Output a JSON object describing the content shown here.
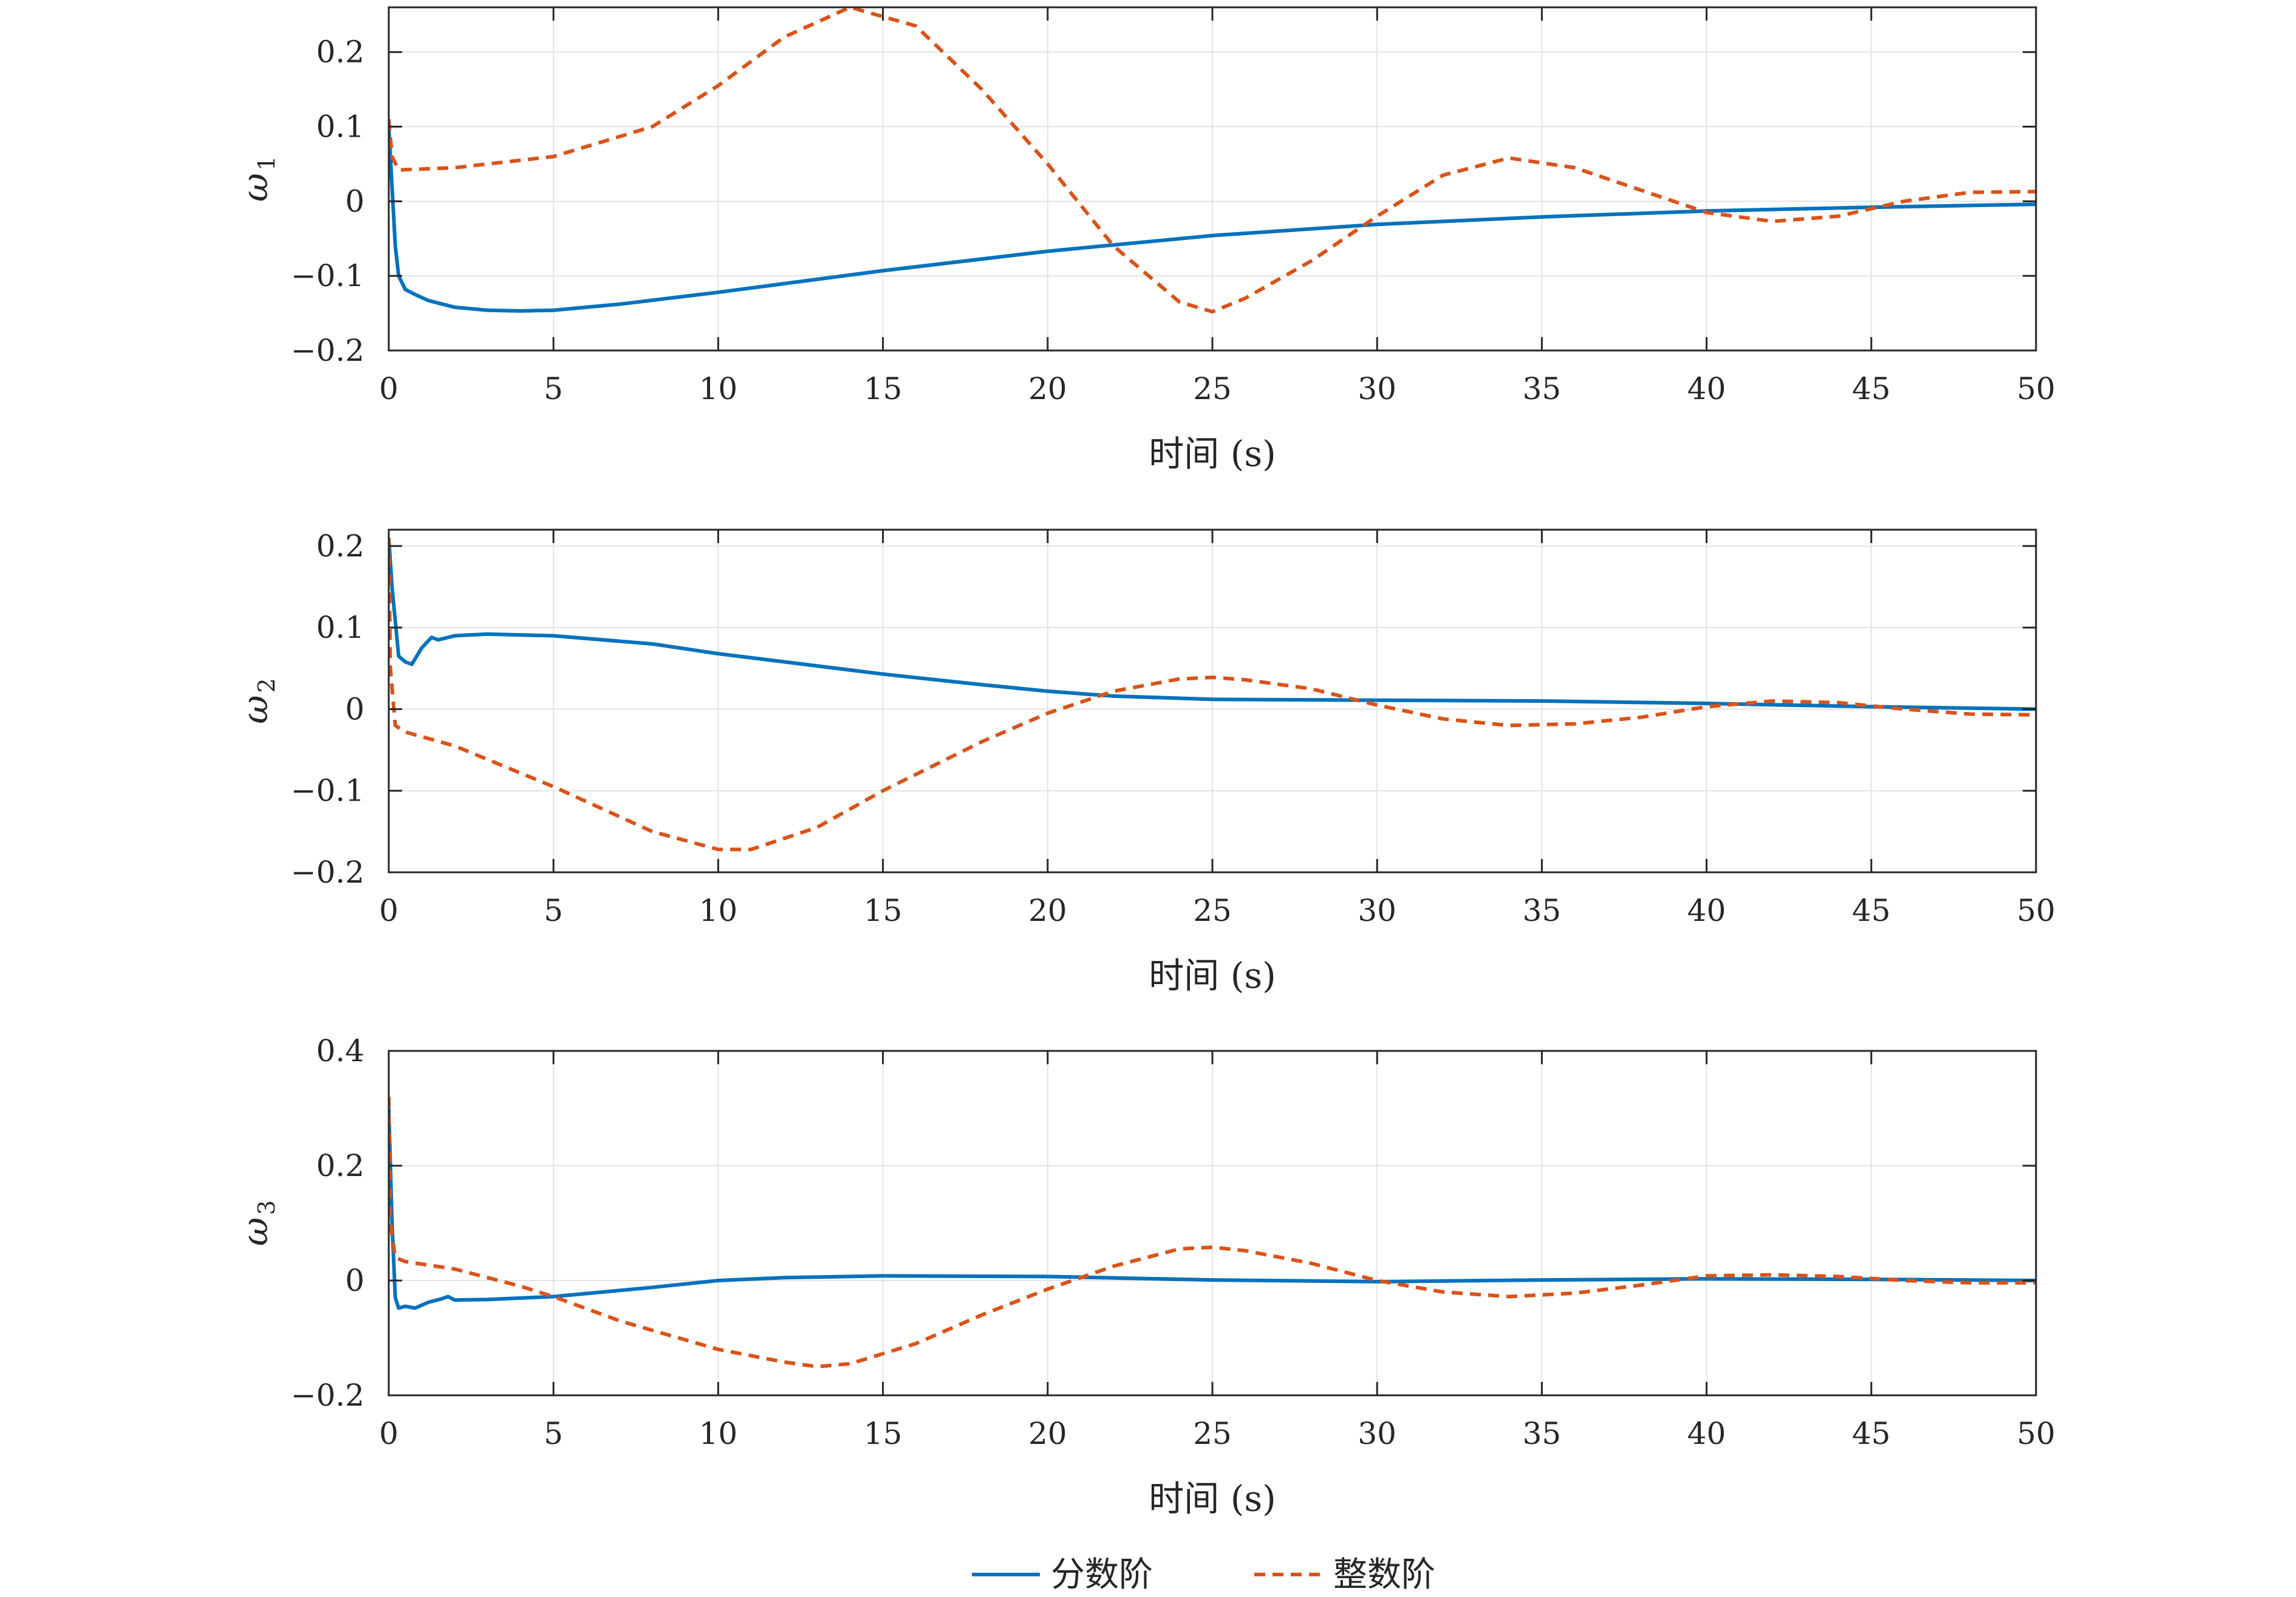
{
  "chart_data": [
    {
      "type": "line",
      "xlabel": "时间 (s)",
      "ylabel": "ω",
      "ylabel_sub": "1",
      "xlim": [
        0,
        50
      ],
      "ylim": [
        -0.2,
        0.26
      ],
      "xticks": [
        0,
        5,
        10,
        15,
        20,
        25,
        30,
        35,
        40,
        45,
        50
      ],
      "yticks": [
        -0.2,
        -0.1,
        0,
        0.1,
        0.2
      ],
      "ytick_labels": [
        "−0.2",
        "−0.1",
        "0",
        "0.1",
        "0.2"
      ],
      "grid": true,
      "series": [
        {
          "name": "分数阶",
          "style": "solid",
          "color": "#0072BD",
          "x": [
            0,
            0.1,
            0.2,
            0.3,
            0.5,
            0.8,
            1.2,
            2,
            3,
            4,
            5,
            7,
            10,
            15,
            20,
            25,
            30,
            35,
            40,
            45,
            50
          ],
          "y": [
            0.1,
            0.02,
            -0.06,
            -0.1,
            -0.118,
            -0.125,
            -0.133,
            -0.142,
            -0.146,
            -0.147,
            -0.146,
            -0.138,
            -0.122,
            -0.093,
            -0.067,
            -0.046,
            -0.031,
            -0.021,
            -0.013,
            -0.008,
            -0.004
          ]
        },
        {
          "name": "整数阶",
          "style": "dashed",
          "color": "#D95319",
          "x": [
            0,
            0.1,
            0.3,
            2,
            5,
            8,
            10,
            12,
            14,
            16,
            18,
            20,
            22,
            24,
            25,
            26,
            28,
            30,
            32,
            34,
            36,
            38,
            40,
            42,
            44,
            46,
            48,
            50
          ],
          "y": [
            0.11,
            0.06,
            0.042,
            0.045,
            0.06,
            0.1,
            0.155,
            0.22,
            0.26,
            0.235,
            0.15,
            0.05,
            -0.06,
            -0.135,
            -0.148,
            -0.13,
            -0.08,
            -0.02,
            0.035,
            0.058,
            0.045,
            0.015,
            -0.015,
            -0.027,
            -0.02,
            0,
            0.012,
            0.013
          ]
        }
      ]
    },
    {
      "type": "line",
      "xlabel": "时间 (s)",
      "ylabel": "ω",
      "ylabel_sub": "2",
      "xlim": [
        0,
        50
      ],
      "ylim": [
        -0.2,
        0.22
      ],
      "xticks": [
        0,
        5,
        10,
        15,
        20,
        25,
        30,
        35,
        40,
        45,
        50
      ],
      "yticks": [
        -0.2,
        -0.1,
        0,
        0.1,
        0.2
      ],
      "ytick_labels": [
        "−0.2",
        "−0.1",
        "0",
        "0.1",
        "0.2"
      ],
      "grid": true,
      "series": [
        {
          "name": "分数阶",
          "style": "solid",
          "color": "#0072BD",
          "x": [
            0,
            0.1,
            0.3,
            0.5,
            0.7,
            1.0,
            1.3,
            1.5,
            2,
            3,
            5,
            8,
            10,
            12,
            15,
            18,
            20,
            22,
            25,
            30,
            35,
            40,
            45,
            50
          ],
          "y": [
            0.21,
            0.15,
            0.065,
            0.058,
            0.055,
            0.075,
            0.088,
            0.085,
            0.09,
            0.092,
            0.09,
            0.08,
            0.068,
            0.058,
            0.043,
            0.03,
            0.022,
            0.016,
            0.012,
            0.011,
            0.01,
            0.007,
            0.003,
            0.0
          ]
        },
        {
          "name": "整数阶",
          "style": "dashed",
          "color": "#D95319",
          "x": [
            0,
            0.05,
            0.2,
            0.5,
            2,
            5,
            8,
            10,
            11,
            13,
            15,
            18,
            20,
            22,
            24,
            25,
            26,
            28,
            30,
            32,
            34,
            36,
            38,
            40,
            42,
            44,
            46,
            48,
            50
          ],
          "y": [
            0.21,
            0.05,
            -0.02,
            -0.028,
            -0.045,
            -0.095,
            -0.15,
            -0.172,
            -0.172,
            -0.145,
            -0.1,
            -0.04,
            -0.005,
            0.022,
            0.037,
            0.039,
            0.036,
            0.025,
            0.005,
            -0.012,
            -0.02,
            -0.018,
            -0.01,
            0.003,
            0.01,
            0.008,
            0.0,
            -0.006,
            -0.007
          ]
        }
      ]
    },
    {
      "type": "line",
      "xlabel": "时间 (s)",
      "ylabel": "ω",
      "ylabel_sub": "3",
      "xlim": [
        0,
        50
      ],
      "ylim": [
        -0.2,
        0.4
      ],
      "xticks": [
        0,
        5,
        10,
        15,
        20,
        25,
        30,
        35,
        40,
        45,
        50
      ],
      "yticks": [
        -0.2,
        0,
        0.2,
        0.4
      ],
      "ytick_labels": [
        "−0.2",
        "0",
        "0.2",
        "0.4"
      ],
      "grid": true,
      "series": [
        {
          "name": "分数阶",
          "style": "solid",
          "color": "#0072BD",
          "x": [
            0,
            0.1,
            0.2,
            0.3,
            0.5,
            0.8,
            1.2,
            1.6,
            1.8,
            2.0,
            3,
            5,
            8,
            10,
            12,
            15,
            20,
            25,
            30,
            35,
            40,
            45,
            50
          ],
          "y": [
            0.3,
            0.1,
            -0.03,
            -0.048,
            -0.045,
            -0.048,
            -0.038,
            -0.032,
            -0.028,
            -0.034,
            -0.033,
            -0.028,
            -0.012,
            0.0,
            0.005,
            0.008,
            0.007,
            0.001,
            -0.002,
            0.001,
            0.003,
            0.002,
            0.0
          ]
        },
        {
          "name": "整数阶",
          "style": "dashed",
          "color": "#D95319",
          "x": [
            0,
            0.05,
            0.2,
            0.5,
            2,
            4,
            5,
            7,
            10,
            12,
            13,
            14,
            16,
            18,
            20,
            22,
            24,
            25,
            26,
            28,
            30,
            32,
            34,
            36,
            38,
            40,
            42,
            44,
            46,
            48,
            50
          ],
          "y": [
            0.32,
            0.1,
            0.04,
            0.033,
            0.02,
            -0.01,
            -0.028,
            -0.07,
            -0.12,
            -0.142,
            -0.15,
            -0.145,
            -0.11,
            -0.06,
            -0.015,
            0.025,
            0.055,
            0.058,
            0.052,
            0.03,
            0.0,
            -0.02,
            -0.028,
            -0.022,
            -0.008,
            0.008,
            0.01,
            0.007,
            0.0,
            -0.004,
            -0.004
          ]
        }
      ]
    }
  ],
  "legend": {
    "position": "bottom",
    "items": [
      {
        "label": "分数阶",
        "style": "solid",
        "color": "#0072BD"
      },
      {
        "label": "整数阶",
        "style": "dashed",
        "color": "#D95319"
      }
    ]
  }
}
